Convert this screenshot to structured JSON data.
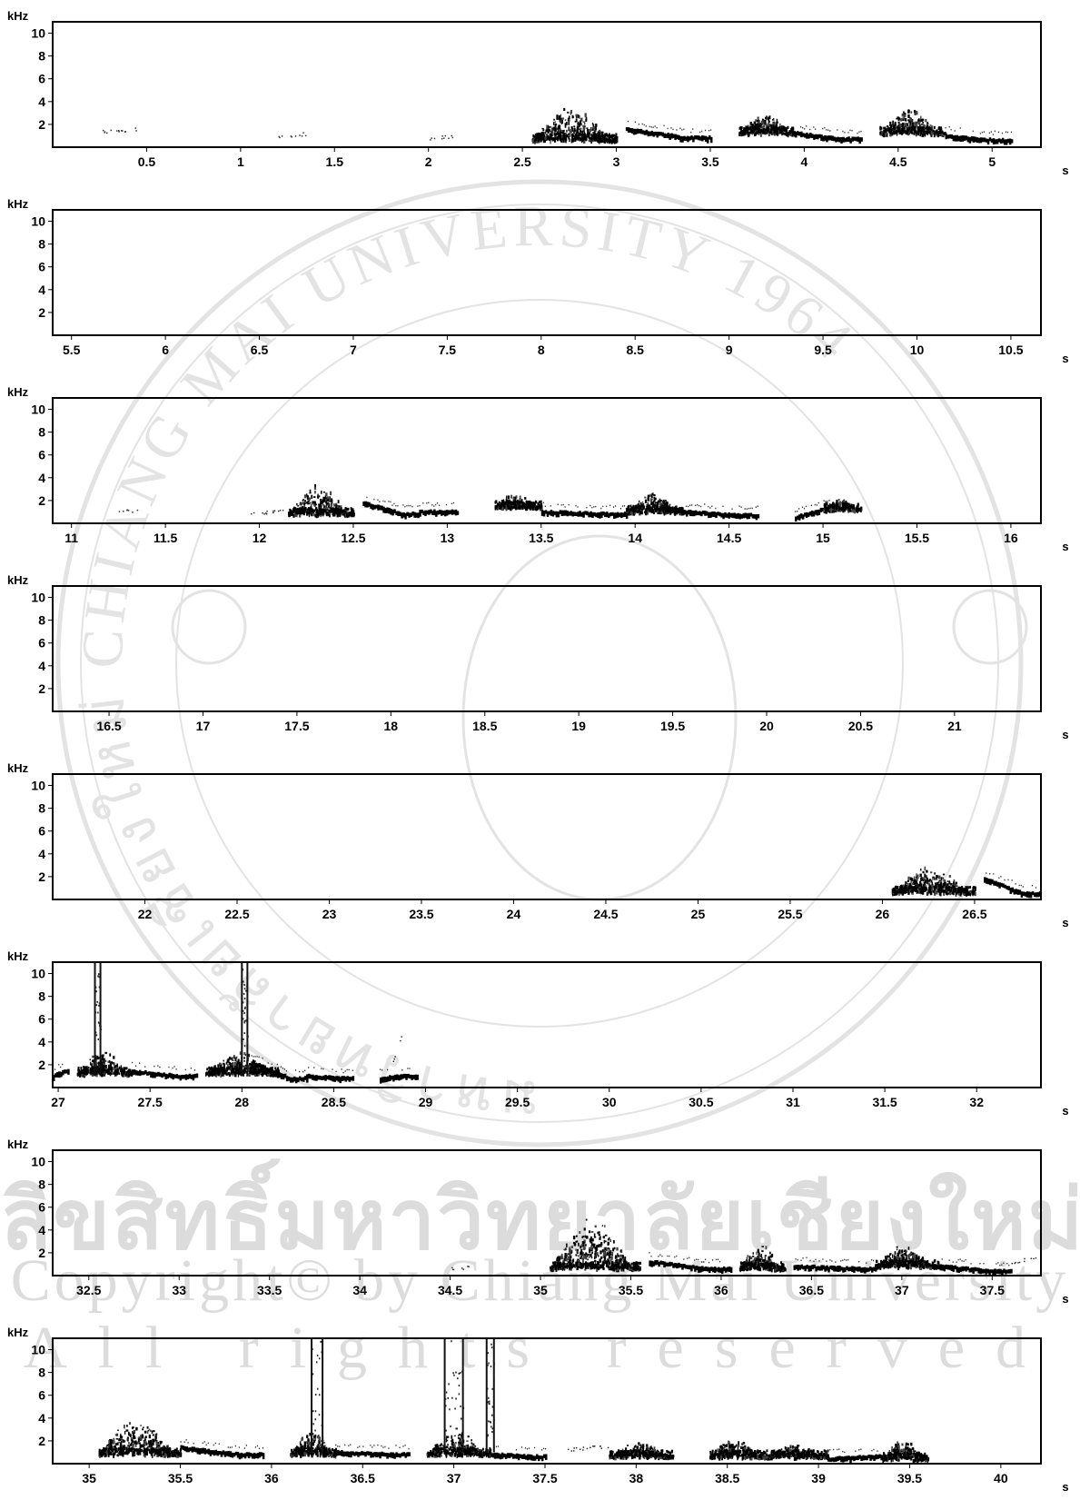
{
  "watermark": {
    "seal_text": "มหาวิทยาลัยเชียงใหม่ CHIANG MAI UNIVERSITY 1964",
    "line1": "ลิขสิทธิ์มหาวิทยาลัยเชียงใหม่",
    "line2": "Copyright© by Chiang Mai University",
    "line3": "All rights reserved"
  },
  "chart_data": [
    {
      "type": "heatmap",
      "y_unit": "kHz",
      "x_unit": "s",
      "ylim": [
        0,
        11
      ],
      "y_ticks": [
        10,
        8,
        6,
        4,
        2
      ],
      "xlim": [
        0,
        5.26
      ],
      "x_ticks": [
        "0.5",
        "1",
        "1.5",
        "2",
        "2.5",
        "3",
        "3.5",
        "4",
        "4.5",
        "5"
      ],
      "segments": [
        {
          "t0": 0.25,
          "t1": 0.45,
          "f0": 1.4,
          "f1": 1.6,
          "style": "faint"
        },
        {
          "t0": 1.2,
          "t1": 1.35,
          "f0": 1.0,
          "f1": 1.2,
          "style": "faint"
        },
        {
          "t0": 2.0,
          "t1": 2.15,
          "f0": 0.8,
          "f1": 1.0,
          "style": "faint"
        },
        {
          "t0": 2.55,
          "t1": 3.0,
          "f0": 0.6,
          "f1": 3.8,
          "style": "burst"
        },
        {
          "t0": 3.05,
          "t1": 3.5,
          "f0": 1.6,
          "f1": 0.8,
          "style": "whistle"
        },
        {
          "t0": 3.65,
          "t1": 3.95,
          "f0": 1.2,
          "f1": 3.0,
          "style": "burst"
        },
        {
          "t0": 3.95,
          "t1": 4.3,
          "f0": 1.2,
          "f1": 0.7,
          "style": "whistle"
        },
        {
          "t0": 4.4,
          "t1": 4.75,
          "f0": 1.2,
          "f1": 3.6,
          "style": "burst"
        },
        {
          "t0": 4.75,
          "t1": 5.1,
          "f0": 1.0,
          "f1": 0.6,
          "style": "whistle"
        }
      ]
    },
    {
      "type": "heatmap",
      "y_unit": "kHz",
      "x_unit": "s",
      "ylim": [
        0,
        11
      ],
      "y_ticks": [
        10,
        8,
        6,
        4,
        2
      ],
      "xlim": [
        5.4,
        10.66
      ],
      "x_ticks": [
        "5.5",
        "6",
        "6.5",
        "7",
        "7.5",
        "8",
        "8.5",
        "9",
        "9.5",
        "10",
        "10.5"
      ],
      "segments": []
    },
    {
      "type": "heatmap",
      "y_unit": "kHz",
      "x_unit": "s",
      "ylim": [
        0,
        11
      ],
      "y_ticks": [
        10,
        8,
        6,
        4,
        2
      ],
      "xlim": [
        10.9,
        16.16
      ],
      "x_ticks": [
        "11",
        "11.5",
        "12",
        "12.5",
        "13",
        "13.5",
        "14",
        "14.5",
        "15",
        "15.5",
        "16"
      ],
      "segments": [
        {
          "t0": 11.25,
          "t1": 11.35,
          "f0": 1.0,
          "f1": 1.2,
          "style": "faint"
        },
        {
          "t0": 11.95,
          "t1": 12.15,
          "f0": 0.8,
          "f1": 1.2,
          "style": "faint"
        },
        {
          "t0": 12.15,
          "t1": 12.5,
          "f0": 0.8,
          "f1": 3.6,
          "style": "burst"
        },
        {
          "t0": 12.55,
          "t1": 12.85,
          "f0": 1.8,
          "f1": 0.8,
          "style": "whistle"
        },
        {
          "t0": 12.85,
          "t1": 13.05,
          "f0": 1.0,
          "f1": 1.0,
          "style": "whistle"
        },
        {
          "t0": 13.25,
          "t1": 13.5,
          "f0": 1.4,
          "f1": 2.8,
          "style": "burst"
        },
        {
          "t0": 13.5,
          "t1": 13.95,
          "f0": 1.0,
          "f1": 0.8,
          "style": "whistle"
        },
        {
          "t0": 13.95,
          "t1": 14.25,
          "f0": 1.0,
          "f1": 2.8,
          "style": "burst"
        },
        {
          "t0": 14.25,
          "t1": 14.65,
          "f0": 1.0,
          "f1": 0.7,
          "style": "whistle"
        },
        {
          "t0": 14.85,
          "t1": 15.05,
          "f0": 0.5,
          "f1": 1.2,
          "style": "whistle"
        },
        {
          "t0": 15.0,
          "t1": 15.2,
          "f0": 1.2,
          "f1": 2.4,
          "style": "burst"
        }
      ]
    },
    {
      "type": "heatmap",
      "y_unit": "kHz",
      "x_unit": "s",
      "ylim": [
        0,
        11
      ],
      "y_ticks": [
        10,
        8,
        6,
        4,
        2
      ],
      "xlim": [
        16.2,
        21.46
      ],
      "x_ticks": [
        "16.5",
        "17",
        "17.5",
        "18",
        "18.5",
        "19",
        "19.5",
        "20",
        "20.5",
        "21"
      ],
      "segments": []
    },
    {
      "type": "heatmap",
      "y_unit": "kHz",
      "x_unit": "s",
      "ylim": [
        0,
        11
      ],
      "y_ticks": [
        10,
        8,
        6,
        4,
        2
      ],
      "xlim": [
        21.5,
        26.86
      ],
      "x_ticks": [
        "22",
        "22.5",
        "23",
        "23.5",
        "24",
        "24.5",
        "25",
        "25.5",
        "26",
        "26.5"
      ],
      "segments": [
        {
          "t0": 26.05,
          "t1": 26.5,
          "f0": 0.6,
          "f1": 3.0,
          "style": "burst"
        },
        {
          "t0": 26.55,
          "t1": 26.85,
          "f0": 1.8,
          "f1": 0.5,
          "style": "whistle"
        }
      ]
    },
    {
      "type": "heatmap",
      "y_unit": "kHz",
      "x_unit": "s",
      "ylim": [
        0,
        11
      ],
      "y_ticks": [
        10,
        8,
        6,
        4,
        2
      ],
      "xlim": [
        26.97,
        32.35
      ],
      "x_ticks": [
        "27",
        "27.5",
        "28",
        "28.5",
        "29",
        "29.5",
        "30",
        "30.5",
        "31",
        "31.5",
        "32"
      ],
      "segments": [
        {
          "t0": 26.97,
          "t1": 27.05,
          "f0": 1.0,
          "f1": 1.4,
          "style": "whistle"
        },
        {
          "t0": 27.1,
          "t1": 27.4,
          "f0": 1.2,
          "f1": 3.4,
          "style": "burst"
        },
        {
          "t0": 27.2,
          "t1": 27.23,
          "f0": 1.0,
          "f1": 11.0,
          "style": "click"
        },
        {
          "t0": 27.4,
          "t1": 27.75,
          "f0": 1.4,
          "f1": 1.0,
          "style": "whistle"
        },
        {
          "t0": 27.8,
          "t1": 28.2,
          "f0": 1.2,
          "f1": 3.2,
          "style": "burst"
        },
        {
          "t0": 28.0,
          "t1": 28.03,
          "f0": 1.0,
          "f1": 11.0,
          "style": "click"
        },
        {
          "t0": 28.05,
          "t1": 28.35,
          "f0": 2.2,
          "f1": 0.8,
          "style": "whistle"
        },
        {
          "t0": 28.35,
          "t1": 28.6,
          "f0": 1.0,
          "f1": 0.8,
          "style": "whistle"
        },
        {
          "t0": 28.75,
          "t1": 28.95,
          "f0": 0.8,
          "f1": 1.0,
          "style": "whistle"
        },
        {
          "t0": 28.82,
          "t1": 28.9,
          "f0": 2.2,
          "f1": 6.0,
          "style": "faint"
        }
      ]
    },
    {
      "type": "heatmap",
      "y_unit": "kHz",
      "x_unit": "s",
      "ylim": [
        0,
        11
      ],
      "y_ticks": [
        10,
        8,
        6,
        4,
        2
      ],
      "xlim": [
        32.3,
        37.77
      ],
      "x_ticks": [
        "32.5",
        "33",
        "33.5",
        "34",
        "34.5",
        "35",
        "35.5",
        "36",
        "36.5",
        "37",
        "37.5"
      ],
      "segments": [
        {
          "t0": 34.5,
          "t1": 34.6,
          "f0": 0.6,
          "f1": 0.8,
          "style": "faint"
        },
        {
          "t0": 35.05,
          "t1": 35.55,
          "f0": 0.6,
          "f1": 5.2,
          "style": "burst"
        },
        {
          "t0": 35.6,
          "t1": 36.05,
          "f0": 1.2,
          "f1": 0.6,
          "style": "whistle"
        },
        {
          "t0": 36.1,
          "t1": 36.35,
          "f0": 0.6,
          "f1": 3.0,
          "style": "burst"
        },
        {
          "t0": 36.4,
          "t1": 36.85,
          "f0": 0.8,
          "f1": 0.6,
          "style": "whistle"
        },
        {
          "t0": 36.85,
          "t1": 37.2,
          "f0": 0.8,
          "f1": 2.8,
          "style": "burst"
        },
        {
          "t0": 37.2,
          "t1": 37.6,
          "f0": 0.8,
          "f1": 0.4,
          "style": "whistle"
        },
        {
          "t0": 37.6,
          "t1": 37.75,
          "f0": 1.2,
          "f1": 1.6,
          "style": "faint"
        }
      ]
    },
    {
      "type": "heatmap",
      "y_unit": "kHz",
      "x_unit": "s",
      "ylim": [
        0,
        11
      ],
      "y_ticks": [
        10,
        8,
        6,
        4,
        2
      ],
      "xlim": [
        34.8,
        40.22
      ],
      "x_ticks": [
        "35",
        "35.5",
        "36",
        "36.5",
        "37",
        "37.5",
        "38",
        "38.5",
        "39",
        "39.5",
        "40"
      ],
      "segments": [
        {
          "t0": 35.05,
          "t1": 35.5,
          "f0": 0.8,
          "f1": 4.2,
          "style": "burst"
        },
        {
          "t0": 35.5,
          "t1": 35.95,
          "f0": 1.4,
          "f1": 0.8,
          "style": "whistle"
        },
        {
          "t0": 36.1,
          "t1": 36.35,
          "f0": 0.8,
          "f1": 3.0,
          "style": "burst"
        },
        {
          "t0": 36.22,
          "t1": 36.28,
          "f0": 1.0,
          "f1": 11.0,
          "style": "click"
        },
        {
          "t0": 36.35,
          "t1": 36.75,
          "f0": 1.0,
          "f1": 0.8,
          "style": "whistle"
        },
        {
          "t0": 36.85,
          "t1": 37.2,
          "f0": 0.8,
          "f1": 3.0,
          "style": "burst"
        },
        {
          "t0": 36.95,
          "t1": 37.05,
          "f0": 1.0,
          "f1": 11.0,
          "style": "click"
        },
        {
          "t0": 37.18,
          "t1": 37.22,
          "f0": 1.0,
          "f1": 11.0,
          "style": "click"
        },
        {
          "t0": 37.2,
          "t1": 37.5,
          "f0": 0.8,
          "f1": 0.6,
          "style": "whistle"
        },
        {
          "t0": 37.6,
          "t1": 37.85,
          "f0": 1.2,
          "f1": 1.6,
          "style": "faint"
        },
        {
          "t0": 37.85,
          "t1": 38.2,
          "f0": 0.6,
          "f1": 2.0,
          "style": "burst"
        },
        {
          "t0": 38.4,
          "t1": 38.7,
          "f0": 0.6,
          "f1": 2.4,
          "style": "burst"
        },
        {
          "t0": 38.7,
          "t1": 39.05,
          "f0": 0.6,
          "f1": 1.8,
          "style": "burst"
        },
        {
          "t0": 39.05,
          "t1": 39.35,
          "f0": 0.4,
          "f1": 0.6,
          "style": "whistle"
        },
        {
          "t0": 39.35,
          "t1": 39.6,
          "f0": 0.4,
          "f1": 2.4,
          "style": "burst"
        }
      ]
    }
  ]
}
